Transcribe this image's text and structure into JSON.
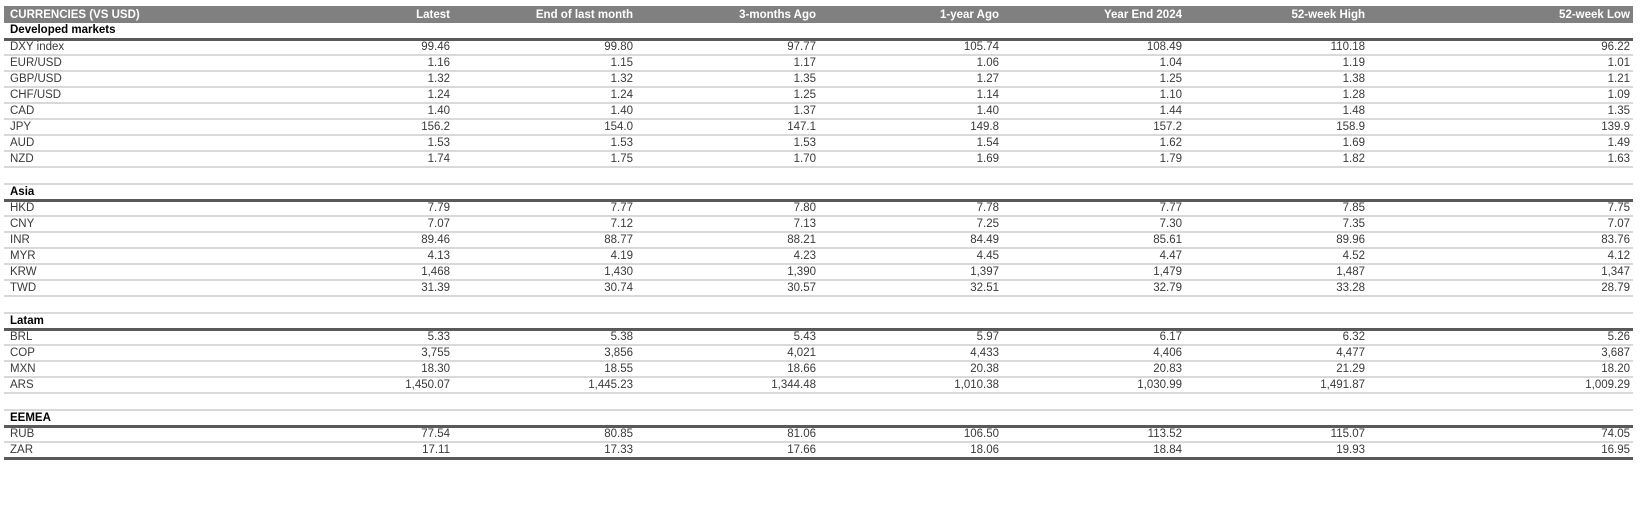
{
  "title": "CURRENCIES (VS USD)",
  "colors": {
    "header_bg": "#808080",
    "header_text": "#ffffff",
    "section_rule": "#595959",
    "row_rule": "#d9d9d9",
    "text": "#3a3a3a",
    "section_text": "#000000"
  },
  "chart_data": {
    "type": "table",
    "title": "CURRENCIES (VS USD)",
    "columns": [
      "CURRENCIES (VS USD)",
      "Latest",
      "End of last month",
      "3-months Ago",
      "1-year Ago",
      "Year End 2024",
      "52-week High",
      "52-week Low"
    ],
    "sections": [
      {
        "name": "Developed markets",
        "rows": [
          {
            "label": "DXY index",
            "values": [
              "99.46",
              "99.80",
              "97.77",
              "105.74",
              "108.49",
              "110.18",
              "96.22"
            ]
          },
          {
            "label": "EUR/USD",
            "values": [
              "1.16",
              "1.15",
              "1.17",
              "1.06",
              "1.04",
              "1.19",
              "1.01"
            ]
          },
          {
            "label": "GBP/USD",
            "values": [
              "1.32",
              "1.32",
              "1.35",
              "1.27",
              "1.25",
              "1.38",
              "1.21"
            ]
          },
          {
            "label": "CHF/USD",
            "values": [
              "1.24",
              "1.24",
              "1.25",
              "1.14",
              "1.10",
              "1.28",
              "1.09"
            ]
          },
          {
            "label": "CAD",
            "values": [
              "1.40",
              "1.40",
              "1.37",
              "1.40",
              "1.44",
              "1.48",
              "1.35"
            ]
          },
          {
            "label": "JPY",
            "values": [
              "156.2",
              "154.0",
              "147.1",
              "149.8",
              "157.2",
              "158.9",
              "139.9"
            ]
          },
          {
            "label": "AUD",
            "values": [
              "1.53",
              "1.53",
              "1.53",
              "1.54",
              "1.62",
              "1.69",
              "1.49"
            ]
          },
          {
            "label": "NZD",
            "values": [
              "1.74",
              "1.75",
              "1.70",
              "1.69",
              "1.79",
              "1.82",
              "1.63"
            ]
          }
        ]
      },
      {
        "name": "Asia",
        "rows": [
          {
            "label": "HKD",
            "values": [
              "7.79",
              "7.77",
              "7.80",
              "7.78",
              "7.77",
              "7.85",
              "7.75"
            ]
          },
          {
            "label": "CNY",
            "values": [
              "7.07",
              "7.12",
              "7.13",
              "7.25",
              "7.30",
              "7.35",
              "7.07"
            ]
          },
          {
            "label": "INR",
            "values": [
              "89.46",
              "88.77",
              "88.21",
              "84.49",
              "85.61",
              "89.96",
              "83.76"
            ]
          },
          {
            "label": "MYR",
            "values": [
              "4.13",
              "4.19",
              "4.23",
              "4.45",
              "4.47",
              "4.52",
              "4.12"
            ]
          },
          {
            "label": "KRW",
            "values": [
              "1,468",
              "1,430",
              "1,390",
              "1,397",
              "1,479",
              "1,487",
              "1,347"
            ]
          },
          {
            "label": "TWD",
            "values": [
              "31.39",
              "30.74",
              "30.57",
              "32.51",
              "32.79",
              "33.28",
              "28.79"
            ]
          }
        ]
      },
      {
        "name": "Latam",
        "rows": [
          {
            "label": "BRL",
            "values": [
              "5.33",
              "5.38",
              "5.43",
              "5.97",
              "6.17",
              "6.32",
              "5.26"
            ]
          },
          {
            "label": "COP",
            "values": [
              "3,755",
              "3,856",
              "4,021",
              "4,433",
              "4,406",
              "4,477",
              "3,687"
            ]
          },
          {
            "label": "MXN",
            "values": [
              "18.30",
              "18.55",
              "18.66",
              "20.38",
              "20.83",
              "21.29",
              "18.20"
            ]
          },
          {
            "label": "ARS",
            "values": [
              "1,450.07",
              "1,445.23",
              "1,344.48",
              "1,010.38",
              "1,030.99",
              "1,491.87",
              "1,009.29"
            ]
          }
        ]
      },
      {
        "name": "EEMEA",
        "rows": [
          {
            "label": "RUB",
            "values": [
              "77.54",
              "80.85",
              "81.06",
              "106.50",
              "113.52",
              "115.07",
              "74.05"
            ]
          },
          {
            "label": "ZAR",
            "values": [
              "17.11",
              "17.33",
              "17.66",
              "18.06",
              "18.84",
              "19.93",
              "16.95"
            ]
          }
        ]
      }
    ]
  }
}
